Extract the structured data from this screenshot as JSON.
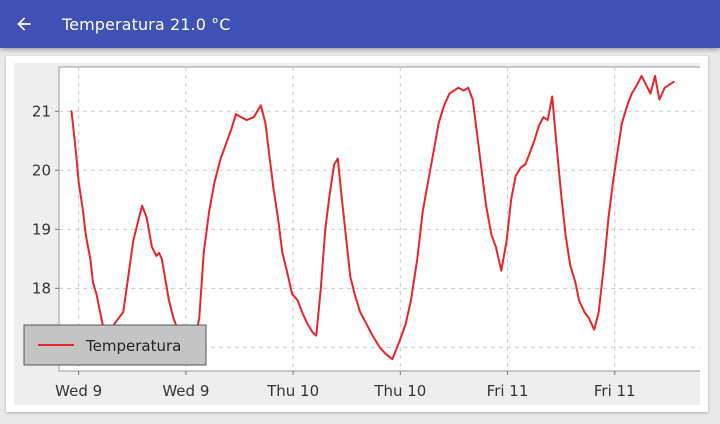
{
  "appbar": {
    "title": "Temperatura 21.0 °C",
    "back_icon": "arrow-back-icon",
    "color": "#3f51b5"
  },
  "chart_data": {
    "type": "line",
    "xlabel": "",
    "ylabel": "",
    "ylim": [
      16.6,
      21.75
    ],
    "y_ticks": [
      17,
      18,
      19,
      20,
      21
    ],
    "x_tick_labels": [
      "Wed 9",
      "Wed 9",
      "Thu 10",
      "Thu 10",
      "Fri 11",
      "Fri 11"
    ],
    "x_tick_hours": [
      0,
      12,
      24,
      36,
      48,
      60
    ],
    "xlim": [
      -2.2,
      70.1
    ],
    "grid": true,
    "legend": {
      "placement": "bottom-left",
      "entries": [
        "Temperatura"
      ]
    },
    "series": [
      {
        "name": "Temperatura",
        "color": "#e8262a",
        "points": [
          [
            -0.8,
            21.0
          ],
          [
            -0.3,
            20.3
          ],
          [
            0.0,
            19.8
          ],
          [
            0.5,
            19.3
          ],
          [
            0.8,
            18.9
          ],
          [
            1.3,
            18.5
          ],
          [
            1.6,
            18.1
          ],
          [
            2.0,
            17.9
          ],
          [
            2.4,
            17.6
          ],
          [
            2.8,
            17.3
          ],
          [
            3.2,
            17.05
          ],
          [
            4.0,
            17.4
          ],
          [
            5.0,
            17.6
          ],
          [
            6.1,
            18.8
          ],
          [
            6.6,
            19.1
          ],
          [
            7.1,
            19.4
          ],
          [
            7.6,
            19.2
          ],
          [
            8.2,
            18.7
          ],
          [
            8.7,
            18.55
          ],
          [
            9.0,
            18.6
          ],
          [
            9.3,
            18.5
          ],
          [
            10.1,
            17.8
          ],
          [
            10.6,
            17.5
          ],
          [
            11.1,
            17.3
          ],
          [
            12.0,
            16.85
          ],
          [
            12.5,
            16.75
          ],
          [
            13.5,
            17.5
          ],
          [
            14.0,
            18.6
          ],
          [
            14.6,
            19.3
          ],
          [
            15.2,
            19.8
          ],
          [
            15.9,
            20.2
          ],
          [
            16.5,
            20.45
          ],
          [
            17.1,
            20.7
          ],
          [
            17.6,
            20.95
          ],
          [
            18.2,
            20.9
          ],
          [
            18.8,
            20.85
          ],
          [
            19.6,
            20.9
          ],
          [
            20.4,
            21.1
          ],
          [
            20.9,
            20.8
          ],
          [
            21.3,
            20.3
          ],
          [
            21.8,
            19.7
          ],
          [
            22.3,
            19.2
          ],
          [
            22.8,
            18.6
          ],
          [
            23.3,
            18.3
          ],
          [
            23.9,
            17.9
          ],
          [
            24.5,
            17.8
          ],
          [
            25.0,
            17.6
          ],
          [
            25.6,
            17.4
          ],
          [
            26.2,
            17.25
          ],
          [
            26.6,
            17.2
          ],
          [
            27.1,
            18.0
          ],
          [
            27.6,
            19.0
          ],
          [
            28.1,
            19.6
          ],
          [
            28.6,
            20.1
          ],
          [
            29.0,
            20.2
          ],
          [
            29.4,
            19.6
          ],
          [
            29.9,
            18.9
          ],
          [
            30.4,
            18.2
          ],
          [
            30.9,
            17.9
          ],
          [
            31.5,
            17.6
          ],
          [
            32.2,
            17.4
          ],
          [
            32.9,
            17.2
          ],
          [
            33.7,
            17.0
          ],
          [
            34.3,
            16.9
          ],
          [
            35.1,
            16.8
          ],
          [
            35.9,
            17.1
          ],
          [
            36.6,
            17.4
          ],
          [
            37.2,
            17.8
          ],
          [
            37.9,
            18.5
          ],
          [
            38.5,
            19.3
          ],
          [
            39.1,
            19.8
          ],
          [
            39.7,
            20.3
          ],
          [
            40.3,
            20.8
          ],
          [
            40.9,
            21.1
          ],
          [
            41.5,
            21.3
          ],
          [
            42.0,
            21.35
          ],
          [
            42.5,
            21.4
          ],
          [
            43.1,
            21.35
          ],
          [
            43.6,
            21.4
          ],
          [
            44.1,
            21.2
          ],
          [
            44.6,
            20.6
          ],
          [
            45.1,
            20.0
          ],
          [
            45.6,
            19.4
          ],
          [
            46.2,
            18.9
          ],
          [
            46.7,
            18.7
          ],
          [
            47.3,
            18.3
          ],
          [
            47.9,
            18.8
          ],
          [
            48.4,
            19.5
          ],
          [
            48.9,
            19.9
          ],
          [
            49.5,
            20.05
          ],
          [
            50.0,
            20.1
          ],
          [
            50.5,
            20.3
          ],
          [
            51.0,
            20.5
          ],
          [
            51.5,
            20.75
          ],
          [
            52.0,
            20.9
          ],
          [
            52.5,
            20.85
          ],
          [
            53.0,
            21.25
          ],
          [
            53.5,
            20.4
          ],
          [
            54.0,
            19.6
          ],
          [
            54.5,
            18.9
          ],
          [
            55.0,
            18.4
          ],
          [
            55.6,
            18.1
          ],
          [
            56.0,
            17.8
          ],
          [
            56.6,
            17.6
          ],
          [
            57.1,
            17.5
          ],
          [
            57.7,
            17.3
          ],
          [
            58.2,
            17.6
          ],
          [
            58.8,
            18.4
          ],
          [
            59.3,
            19.2
          ],
          [
            59.8,
            19.8
          ],
          [
            60.3,
            20.3
          ],
          [
            60.8,
            20.8
          ],
          [
            61.4,
            21.1
          ],
          [
            61.9,
            21.3
          ],
          [
            62.5,
            21.45
          ],
          [
            63.0,
            21.6
          ],
          [
            63.5,
            21.45
          ],
          [
            64.0,
            21.3
          ],
          [
            64.5,
            21.6
          ],
          [
            65.0,
            21.2
          ],
          [
            65.6,
            21.4
          ],
          [
            66.1,
            21.45
          ],
          [
            66.6,
            21.5
          ]
        ]
      }
    ]
  }
}
